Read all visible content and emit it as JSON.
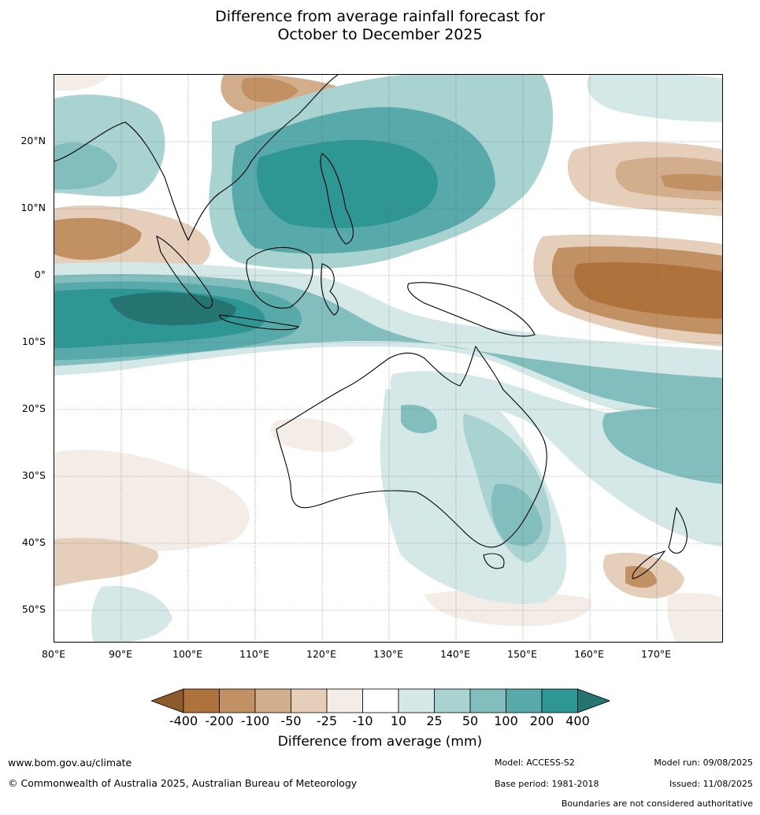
{
  "title": {
    "line1": "Difference from average rainfall forecast for",
    "line2": "October to December 2025"
  },
  "map": {
    "region": "Indo-Pacific / Australia",
    "lat_labels": [
      "20°N",
      "10°N",
      "0°",
      "10°S",
      "20°S",
      "30°S",
      "40°S",
      "50°S"
    ],
    "lon_labels": [
      "80°E",
      "90°E",
      "100°E",
      "110°E",
      "120°E",
      "130°E",
      "140°E",
      "150°E",
      "160°E",
      "170°E"
    ]
  },
  "legend": {
    "ticks": [
      "-400",
      "-200",
      "-100",
      "-50",
      "-25",
      "-10",
      "10",
      "25",
      "50",
      "100",
      "200",
      "400"
    ],
    "colors": [
      "#8d5a2b",
      "#ae733c",
      "#c19163",
      "#d3ae8c",
      "#e5cfbb",
      "#f4ece6",
      "#ffffff",
      "#d4e9e7",
      "#a9d3d1",
      "#81bebd",
      "#58a9a9",
      "#2e9794",
      "#247471"
    ],
    "label": "Difference from average (mm)"
  },
  "footer": {
    "url": "www.bom.gov.au/climate",
    "copyright": "© Commonwealth of Australia 2025, Australian Bureau of Meteorology",
    "model": "Model: ACCESS-S2",
    "base_period": "Base period: 1981-2018",
    "model_run": "Model run: 09/08/2025",
    "issued": "Issued: 11/08/2025",
    "disclaimer": "Boundaries are not considered authoritative"
  }
}
